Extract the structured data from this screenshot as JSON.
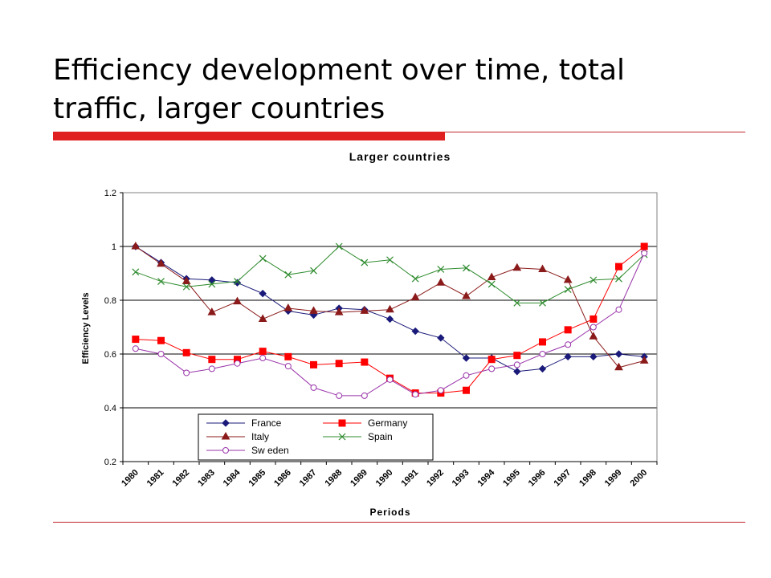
{
  "slide": {
    "title": "Efficiency development over time, total traffic, larger countries"
  },
  "colors": {
    "accent": "#e02020",
    "france": "#1a1a7a",
    "germany": "#ff0000",
    "italy": "#8b1a1a",
    "spain": "#2e8b2e",
    "sweden": "#9933aa"
  },
  "chart_data": {
    "type": "line",
    "title": "Larger countries",
    "xlabel": "Periods",
    "ylabel": "Efficiency Levels",
    "ylim": [
      0.2,
      1.2
    ],
    "yticks": [
      "0.2",
      "0.4",
      "0.6",
      "0.8",
      "1",
      "1.2"
    ],
    "grid": "horizontal",
    "legend_position": "bottom-left",
    "categories": [
      "1980",
      "1981",
      "1982",
      "1983",
      "1984",
      "1985",
      "1986",
      "1987",
      "1988",
      "1989",
      "1990",
      "1991",
      "1992",
      "1993",
      "1994",
      "1995",
      "1996",
      "1997",
      "1998",
      "1999",
      "2000"
    ],
    "series": [
      {
        "name": "France",
        "marker": "diamond",
        "color": "#1a1a7a",
        "values": [
          1.0,
          0.94,
          0.88,
          0.875,
          0.865,
          0.825,
          0.76,
          0.745,
          0.77,
          0.765,
          0.73,
          0.685,
          0.66,
          0.585,
          0.585,
          0.535,
          0.545,
          0.59,
          0.59,
          0.6,
          0.59
        ]
      },
      {
        "name": "Germany",
        "marker": "square",
        "color": "#ff0000",
        "values": [
          0.655,
          0.65,
          0.605,
          0.58,
          0.58,
          0.61,
          0.59,
          0.56,
          0.565,
          0.57,
          0.51,
          0.455,
          0.455,
          0.465,
          0.58,
          0.595,
          0.645,
          0.69,
          0.73,
          0.925,
          1.0
        ]
      },
      {
        "name": "Italy",
        "marker": "triangle",
        "color": "#8b1a1a",
        "values": [
          1.0,
          0.935,
          0.87,
          0.755,
          0.795,
          0.73,
          0.77,
          0.76,
          0.755,
          0.76,
          0.765,
          0.81,
          0.865,
          0.815,
          0.885,
          0.92,
          0.915,
          0.875,
          0.665,
          0.55,
          0.575
        ]
      },
      {
        "name": "Spain",
        "marker": "x",
        "color": "#2e8b2e",
        "values": [
          0.905,
          0.87,
          0.85,
          0.86,
          0.87,
          0.955,
          0.895,
          0.91,
          1.0,
          0.94,
          0.95,
          0.88,
          0.915,
          0.92,
          0.86,
          0.79,
          0.79,
          0.84,
          0.875,
          0.88,
          0.97
        ]
      },
      {
        "name": "Sweden",
        "marker": "circle",
        "color": "#9933aa",
        "values": [
          0.62,
          0.6,
          0.53,
          0.545,
          0.565,
          0.585,
          0.555,
          0.475,
          0.445,
          0.445,
          0.505,
          0.45,
          0.465,
          0.52,
          0.545,
          0.56,
          0.6,
          0.635,
          0.7,
          0.765,
          0.975
        ]
      }
    ],
    "legend": [
      {
        "label": "France",
        "series": 0
      },
      {
        "label": "Germany",
        "series": 1
      },
      {
        "label": "Italy",
        "series": 2
      },
      {
        "label": "Spain",
        "series": 3
      },
      {
        "label": "Sw eden",
        "series": 4
      }
    ]
  }
}
